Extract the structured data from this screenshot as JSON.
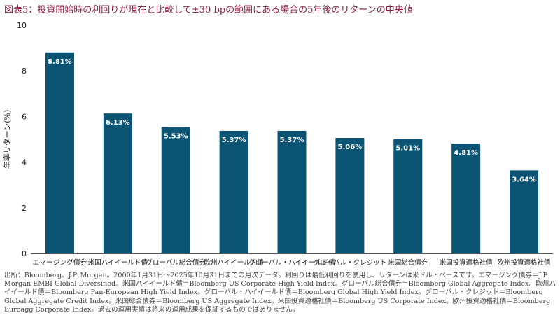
{
  "header": {
    "title": "図表5：投資開始時の利回りが現在と比較して±30 bpの範囲にある場合の5年後のリターンの中央値"
  },
  "chart_data": {
    "type": "bar",
    "title": "図表5：投資開始時の利回りが現在と比較して±30 bpの範囲にある場合の5年後のリターンの中央値",
    "ylabel": "年率リターン(%)",
    "xlabel": "",
    "ylim": [
      0,
      10
    ],
    "yticks": [
      0,
      2,
      4,
      6,
      8,
      10
    ],
    "grid": false,
    "bar_color": "#0c5474",
    "categories": [
      "エマージング債券",
      "米国ハイイールド債",
      "グローバル総合債券",
      "欧州ハイイールド債",
      "グローバル・ハイイールド債",
      "グローバル・クレジット",
      "米国総合債券",
      "米国投資適格社債",
      "欧州投資適格社債"
    ],
    "values": [
      8.81,
      6.13,
      5.53,
      5.37,
      5.37,
      5.06,
      5.01,
      4.81,
      3.64
    ],
    "labels": [
      "8.81%",
      "6.13%",
      "5.53%",
      "5.37%",
      "5.37%",
      "5.06%",
      "5.01%",
      "4.81%",
      "3.64%"
    ]
  },
  "footnote": {
    "text": "出所：Bloomberg、J.P. Morgan。2000年1月31日～2025年10月31日までの月次データ。利回りは最低利回りを使用し、リターンは米ドル・ベースです。エマージング債券＝J.P. Morgan EMBI Global Diversified。米国ハイイールド債＝Bloomberg US Corporate High Yield Index。グローバル総合債券＝Bloomberg Global Aggregate Index。欧州ハイイールド債＝Bloomberg Pan-European High Yield Index。グローバル・ハイイールド債＝Bloomberg Global High Yield Index。グローバル・クレジット＝Bloomberg Global Aggregate Credit Index。米国総合債券＝Bloomberg US Aggregate Index。米国投資適格社債＝Bloomberg US Corporate Index。欧州投資適格社債＝Bloomberg Euroagg Corporate Index。過去の運用実績は将来の運用成果を保証するものではありません。"
  }
}
